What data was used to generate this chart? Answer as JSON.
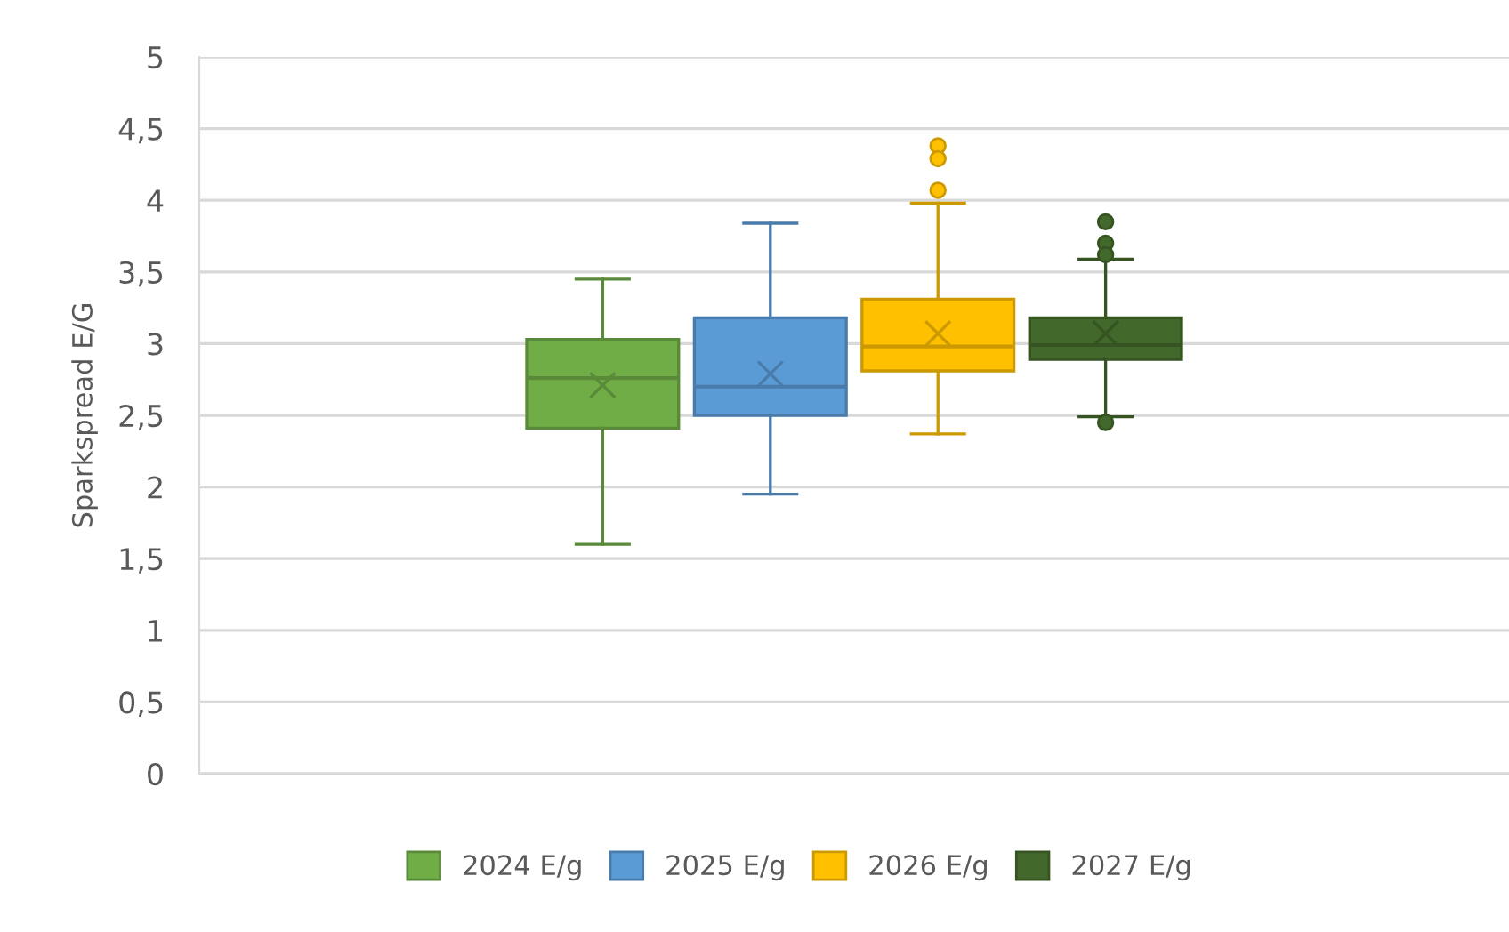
{
  "chart_data": {
    "type": "box",
    "ylabel": "Sparkspread E/G",
    "categories": [
      null
    ],
    "series": [
      {
        "name": "2024 E/g",
        "color": "#70ad47",
        "boxes": [
          {
            "low": 1.6,
            "q1": 2.41,
            "median": 2.76,
            "q3": 3.03,
            "high": 3.45,
            "mean": 2.71
          }
        ]
      },
      {
        "name": "2025 E/g",
        "color": "#5b9bd5",
        "boxes": [
          {
            "low": 1.95,
            "q1": 2.5,
            "median": 2.7,
            "q3": 3.18,
            "high": 3.84,
            "mean": 2.79
          }
        ]
      },
      {
        "name": "2026 E/g",
        "color": "#ffc000",
        "boxes": [
          {
            "low": 2.37,
            "q1": 2.81,
            "median": 2.98,
            "q3": 3.31,
            "high": 3.98,
            "mean": 3.07,
            "outliers": [
              4.38,
              4.29,
              4.07
            ]
          }
        ]
      },
      {
        "name": "2027 E/g",
        "color": "#43682b",
        "boxes": [
          {
            "low": 2.49,
            "q1": 2.89,
            "median": 2.99,
            "q3": 3.18,
            "high": 3.59,
            "mean": 3.07,
            "outliers": [
              3.85,
              3.7,
              3.62,
              2.45
            ]
          }
        ]
      }
    ],
    "ylim": [
      0,
      5
    ],
    "yticks": [
      0,
      {
        "value": 0.5,
        "label": "0,5"
      },
      1,
      {
        "value": 1.5,
        "label": "1,5"
      },
      2,
      {
        "value": 2.5,
        "label": "2,5"
      },
      3,
      {
        "value": 3.5,
        "label": "3,5"
      },
      4,
      {
        "value": 4.5,
        "label": "4,5"
      },
      5
    ],
    "grid": "y",
    "legend": "bottom",
    "marker": "cross"
  }
}
